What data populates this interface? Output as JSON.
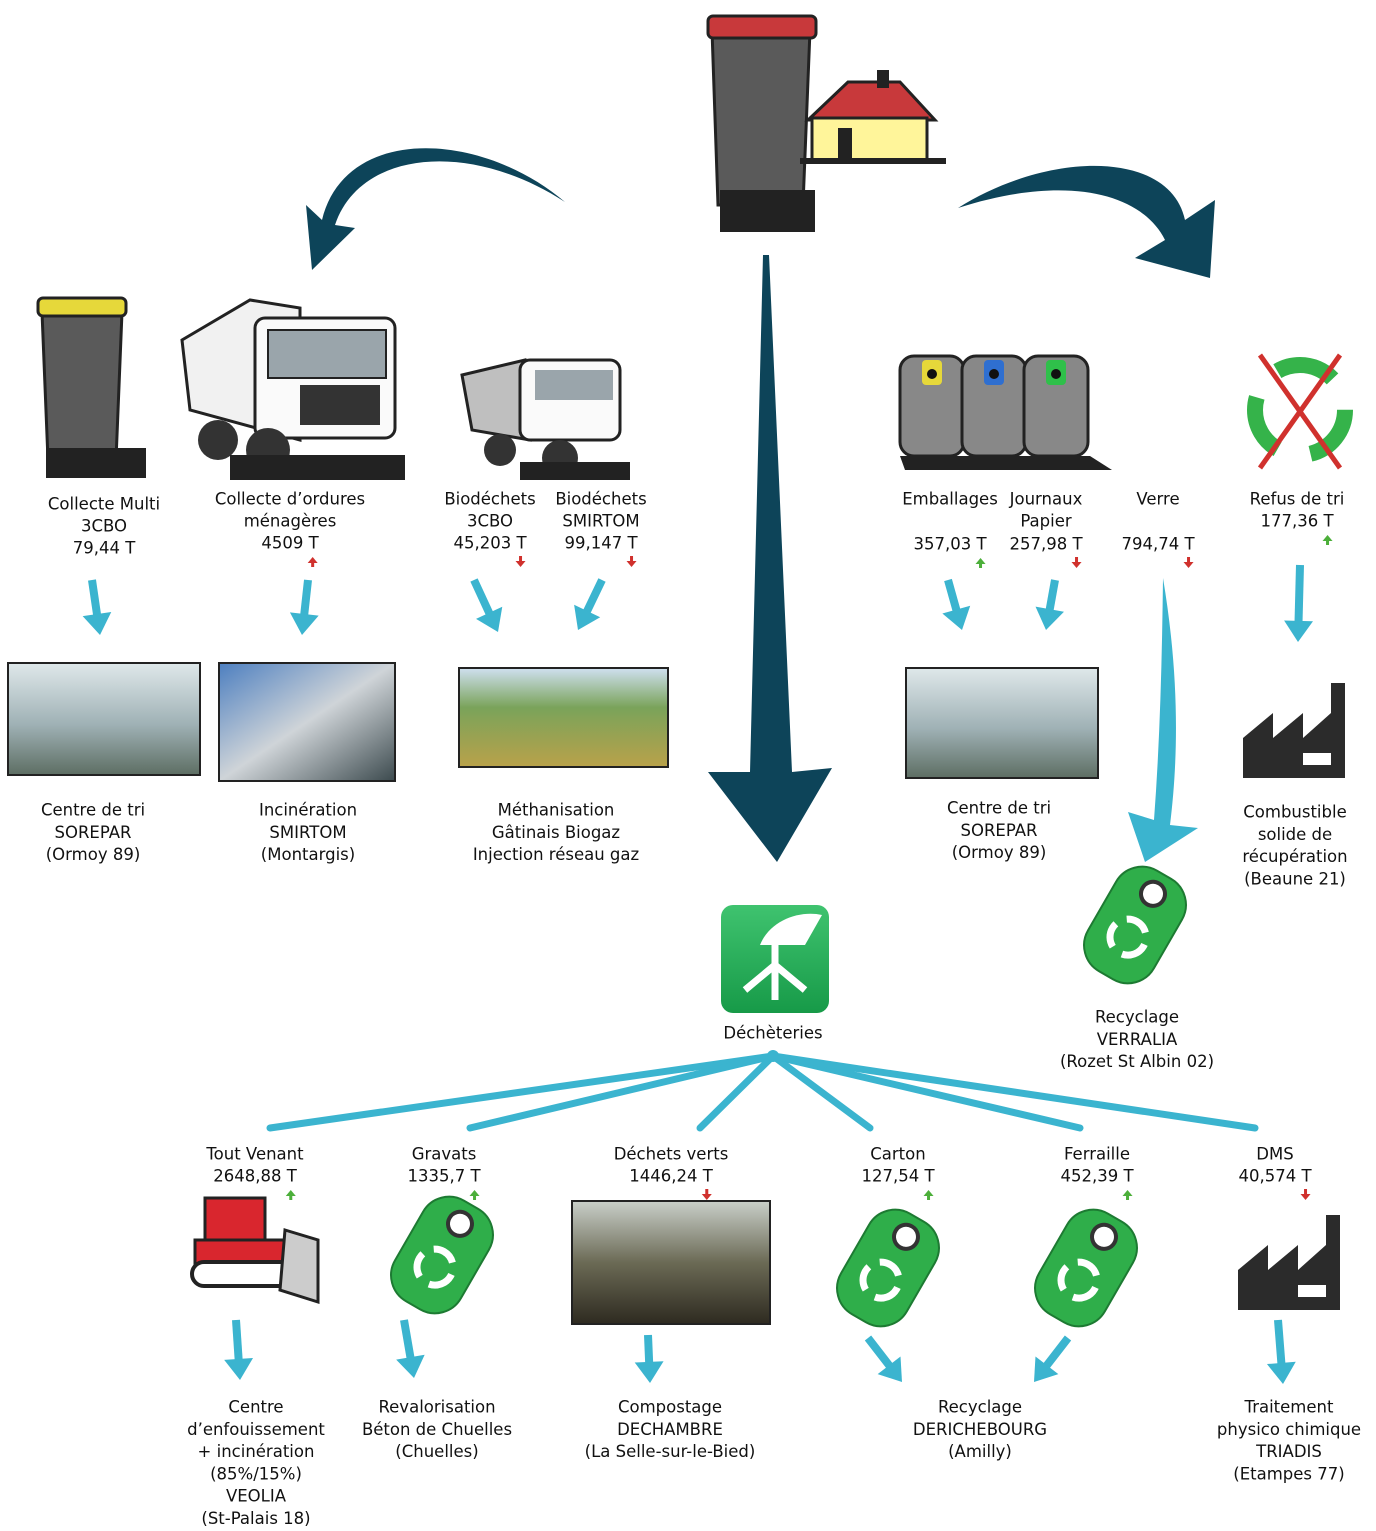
{
  "sources": [
    {
      "lines": [
        "Collecte Multi",
        "3CBO",
        "79,44 T"
      ]
    },
    {
      "lines": [
        "Collecte d’ordures",
        "ménagères",
        "4509 T"
      ],
      "trend": "up",
      "trend_color": "#d0312d"
    },
    {
      "lines": [
        "Biodéchets",
        "3CBO",
        "45,203 T"
      ],
      "trend": "down",
      "trend_color": "#d0312d"
    },
    {
      "lines": [
        "Biodéchets",
        "SMIRTOM",
        "99,147 T"
      ],
      "trend": "down",
      "trend_color": "#d0312d"
    },
    {
      "lines": [
        "Emballages",
        "357,03 T"
      ],
      "trend": "up",
      "trend_color": "#4caf3a"
    },
    {
      "lines": [
        "Journaux",
        "Papier",
        "257,98 T"
      ],
      "trend": "down",
      "trend_color": "#d0312d"
    },
    {
      "lines": [
        "Verre",
        "794,74 T"
      ],
      "trend": "down",
      "trend_color": "#d0312d"
    },
    {
      "lines": [
        "Refus de tri",
        "177,36 T"
      ],
      "trend": "up",
      "trend_color": "#4caf3a"
    }
  ],
  "destinations": [
    {
      "lines": [
        "Centre de tri",
        "SOREPAR",
        "(Ormoy 89)"
      ]
    },
    {
      "lines": [
        "Incinération",
        "SMIRTOM",
        "(Montargis)"
      ]
    },
    {
      "lines": [
        "Méthanisation",
        "Gâtinais Biogaz",
        "Injection réseau gaz"
      ]
    },
    {
      "lines": [
        "Centre de tri",
        "SOREPAR",
        "(Ormoy 89)"
      ]
    },
    {
      "lines": [
        "Combustible",
        "solide de",
        "récupération",
        "(Beaune 21)"
      ]
    },
    {
      "lines": [
        "Recyclage",
        "VERRALIA",
        "(Rozet St Albin 02)"
      ]
    }
  ],
  "hub": {
    "label": "Déchèteries"
  },
  "depot_streams": [
    {
      "lines": [
        "Tout Venant",
        "2648,88 T"
      ],
      "trend": "up",
      "trend_color": "#4caf3a"
    },
    {
      "lines": [
        "Gravats",
        "1335,7 T"
      ],
      "trend": "up",
      "trend_color": "#4caf3a"
    },
    {
      "lines": [
        "Déchets verts",
        "1446,24 T"
      ],
      "trend": "down",
      "trend_color": "#d0312d"
    },
    {
      "lines": [
        "Carton",
        "127,54 T"
      ],
      "trend": "up",
      "trend_color": "#4caf3a"
    },
    {
      "lines": [
        "Ferraille",
        "452,39 T"
      ],
      "trend": "up",
      "trend_color": "#4caf3a"
    },
    {
      "lines": [
        "DMS",
        "40,574 T"
      ],
      "trend": "down",
      "trend_color": "#d0312d"
    }
  ],
  "depot_destinations": [
    {
      "lines": [
        "Centre",
        "d’enfouissement",
        "+ incinération",
        "(85%/15%)",
        "VEOLIA",
        "(St-Palais 18)"
      ]
    },
    {
      "lines": [
        "Revalorisation",
        "Béton de Chuelles",
        "(Chuelles)"
      ]
    },
    {
      "lines": [
        "Compostage",
        "DECHAMBRE",
        "(La Selle-sur-le-Bied)"
      ]
    },
    {
      "lines": [
        "Recyclage",
        "DERICHEBOURG",
        "(Amilly)"
      ]
    },
    {
      "lines": [
        "Traitement",
        "physico chimique",
        "TRIADIS",
        "(Etampes 77)"
      ]
    }
  ]
}
